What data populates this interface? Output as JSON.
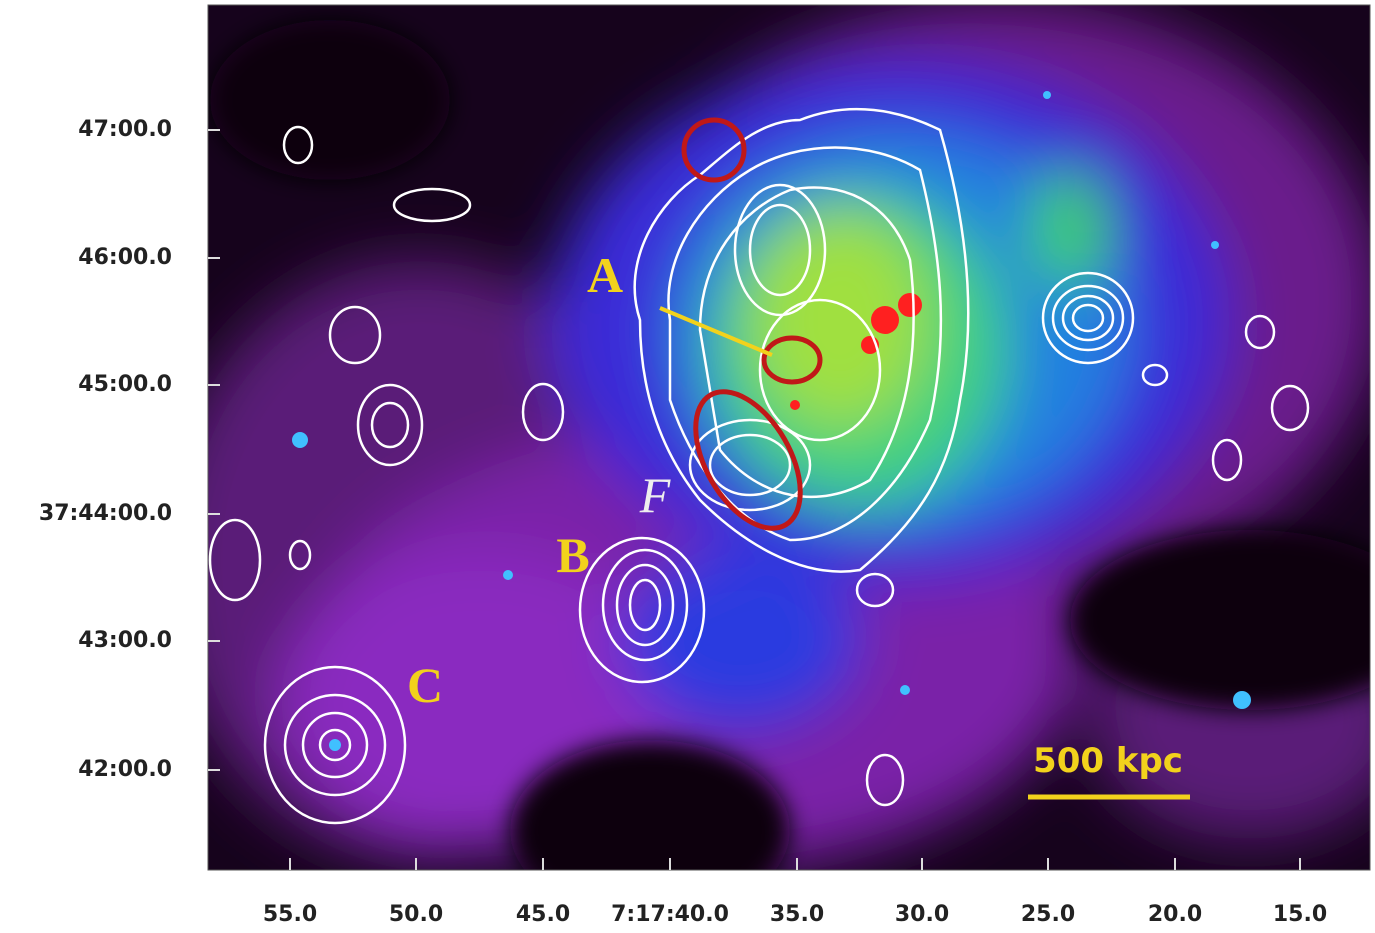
{
  "figure": {
    "y_axis_labels": [
      "47:00.0",
      "46:00.0",
      "45:00.0",
      "37:44:00.0",
      "43:00.0",
      "42:00.0"
    ],
    "x_axis_labels": [
      "55.0",
      "50.0",
      "45.0",
      "7:17:40.0",
      "35.0",
      "30.0",
      "25.0",
      "20.0",
      "15.0"
    ],
    "annotations": {
      "A": "A",
      "B": "B",
      "C": "C",
      "F": "F"
    },
    "scale_bar": "500 kpc"
  }
}
